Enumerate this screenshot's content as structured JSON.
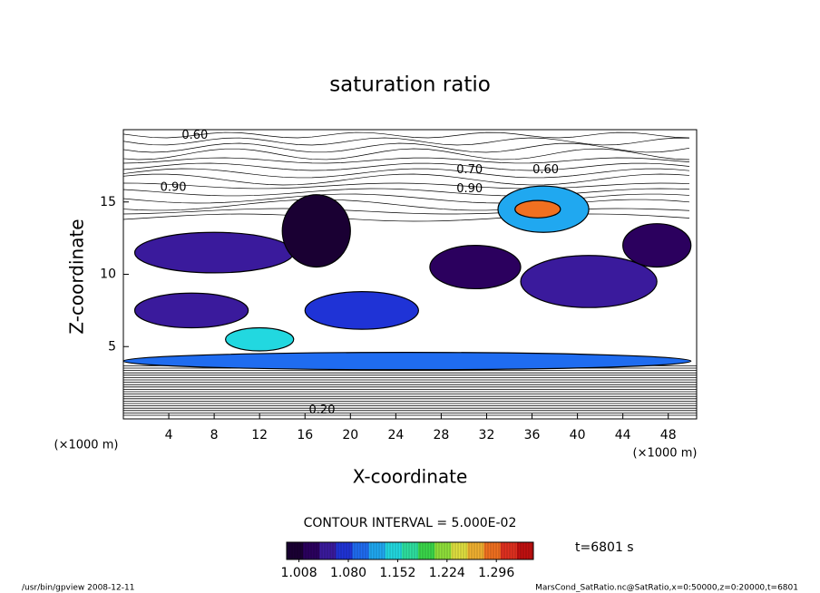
{
  "chart_data": {
    "type": "contour",
    "title": "saturation ratio",
    "xlabel": "X-coordinate",
    "ylabel": "Z-coordinate",
    "x_unit": "(×1000 m)",
    "y_unit": "(×1000 m)",
    "xlim": [
      0,
      50.5
    ],
    "xticks": [
      4,
      8,
      12,
      16,
      20,
      24,
      28,
      32,
      36,
      40,
      44,
      48
    ],
    "ylim": [
      0,
      20
    ],
    "yticks": [
      5,
      10,
      15
    ],
    "contour_interval": "CONTOUR INTERVAL = 5.000E-02",
    "time_label": "t=6801 s",
    "footer_left": "/usr/bin/gpview   2008-12-11",
    "footer_right": "MarsCond_SatRatio.nc@SatRatio,x=0:50000,z=0:20000,t=6801",
    "colorbar_lim": [
      0.99,
      1.35
    ],
    "colorbar_ticks": [
      1.008,
      {
        "value": 1.08,
        "label": "1.080"
      },
      1.152,
      1.224,
      1.296
    ],
    "colormap": [
      "#1a0033",
      "#2b005e",
      "#3a1a9c",
      "#1f33d6",
      "#1f6cf0",
      "#20a8f0",
      "#22d8e0",
      "#2ee0a0",
      "#3ad64a",
      "#8fe03a",
      "#e0e040",
      "#f0b030",
      "#f07020",
      "#e03020",
      "#c01010"
    ],
    "regions": [
      {
        "x": 25,
        "y": 4.0,
        "rx": 25,
        "ry": 0.6,
        "value": 1.1
      },
      {
        "x": 8,
        "y": 11.5,
        "rx": 7,
        "ry": 1.4,
        "value": 1.04
      },
      {
        "x": 6,
        "y": 7.5,
        "rx": 5,
        "ry": 1.2,
        "value": 1.05
      },
      {
        "x": 21,
        "y": 7.5,
        "rx": 5,
        "ry": 1.3,
        "value": 1.07
      },
      {
        "x": 31,
        "y": 10.5,
        "rx": 4,
        "ry": 1.5,
        "value": 1.03
      },
      {
        "x": 41,
        "y": 9.5,
        "rx": 6,
        "ry": 1.8,
        "value": 1.05
      },
      {
        "x": 47,
        "y": 12,
        "rx": 3,
        "ry": 1.5,
        "value": 1.02
      },
      {
        "x": 37,
        "y": 14.5,
        "rx": 4,
        "ry": 1.6,
        "value": 1.12
      },
      {
        "x": 36.5,
        "y": 14.5,
        "rx": 2,
        "ry": 0.6,
        "value": 1.28
      },
      {
        "x": 17,
        "y": 13,
        "rx": 3,
        "ry": 2.5,
        "value": 1.0
      },
      {
        "x": 12,
        "y": 5.5,
        "rx": 3,
        "ry": 0.8,
        "value": 1.15
      }
    ],
    "contour_labels": [
      {
        "x": 6.3,
        "y": 19.6,
        "value": 0.6,
        "label": "0.60"
      },
      {
        "x": 4.4,
        "y": 16.0,
        "value": 0.9,
        "label": "0.90"
      },
      {
        "x": 30.5,
        "y": 17.2,
        "value": 0.7,
        "label": "0.70"
      },
      {
        "x": 30.5,
        "y": 15.9,
        "value": 0.9,
        "label": "0.90"
      },
      {
        "x": 37.2,
        "y": 17.2,
        "value": 0.6,
        "label": "0.60"
      },
      {
        "x": 17.5,
        "y": 0.6,
        "value": 0.2,
        "label": "0.20"
      }
    ]
  }
}
